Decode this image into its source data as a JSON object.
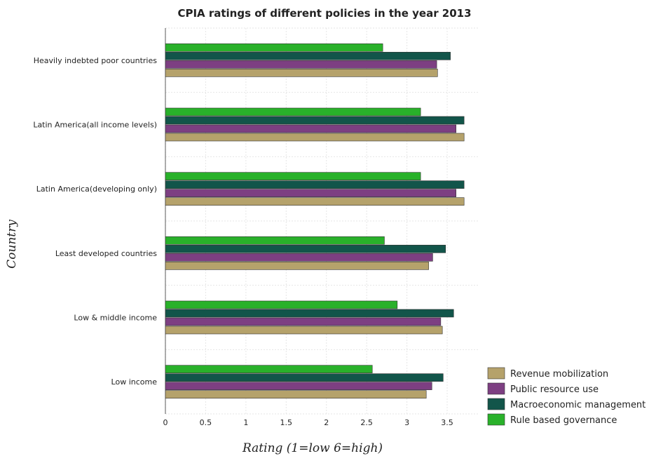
{
  "chart_data": {
    "type": "bar",
    "orientation": "horizontal",
    "title": "CPIA ratings of different policies in the year 2013",
    "xlabel": "Rating (1=low 6=high)",
    "ylabel": "Country",
    "xlim": [
      0,
      3.9
    ],
    "xticks": [
      "0",
      "0.5",
      "1",
      "1.5",
      "2",
      "2.5",
      "3",
      "3.5"
    ],
    "grid": true,
    "legend_position": "bottom-right",
    "categories": [
      "Heavily indebted poor countries",
      "Latin America(all income levels)",
      "Latin America(developing only)",
      "Least developed countries",
      "Low & middle income",
      "Low income"
    ],
    "series": [
      {
        "name": "Revenue mobilization",
        "color": "#b5a26b",
        "values": [
          3.38,
          3.71,
          3.71,
          3.27,
          3.44,
          3.24
        ]
      },
      {
        "name": "Public resource use",
        "color": "#7d3f82",
        "values": [
          3.37,
          3.61,
          3.61,
          3.32,
          3.42,
          3.31
        ]
      },
      {
        "name": "Macroeconomic management",
        "color": "#12554a",
        "values": [
          3.54,
          3.71,
          3.71,
          3.48,
          3.58,
          3.45
        ]
      },
      {
        "name": "Rule based governance",
        "color": "#29b12a",
        "values": [
          2.7,
          3.17,
          3.17,
          2.72,
          2.88,
          2.57
        ]
      }
    ]
  }
}
